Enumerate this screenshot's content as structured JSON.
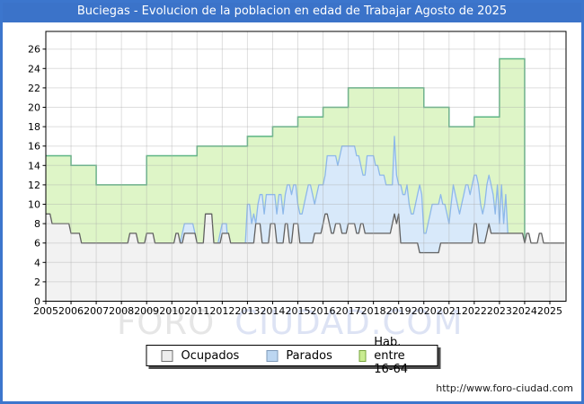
{
  "header": {
    "title": "Buciegas - Evolucion de la poblacion en edad de Trabajar Agosto de 2025"
  },
  "watermark": {
    "part1": "FORO",
    "part2": "CIUDAD.COM"
  },
  "footer": {
    "url": "http://www.foro-ciudad.com"
  },
  "legend": {
    "items": [
      {
        "label": "Ocupados",
        "fill": "#ededed",
        "border": "#6e6e6e"
      },
      {
        "label": "Parados",
        "fill": "#bcd6f1",
        "border": "#7e99b8"
      },
      {
        "label": "Hab. entre 16-64",
        "fill": "#c9ec91",
        "border": "#77a53d"
      }
    ]
  },
  "colors": {
    "frame_blue": "#3c76cd",
    "titlebar_blue": "#3b73c9",
    "gridline": "#a8a8a8",
    "plot_border": "#000000",
    "hab_fill": "#def5c7",
    "hab_stroke": "#5cb584",
    "parados_fill": "#d8e9fa",
    "parados_stroke": "#8db8ea",
    "ocupados_fill": "#f2f2f2",
    "ocupados_stroke": "#606060"
  },
  "chart_data": {
    "type": "area",
    "title": "Buciegas - Evolucion de la poblacion en edad de Trabajar Agosto de 2025",
    "xlabel": "",
    "ylabel": "",
    "x_axis": {
      "ticks": [
        2005,
        2006,
        2007,
        2008,
        2009,
        2010,
        2011,
        2012,
        2013,
        2014,
        2015,
        2016,
        2017,
        2018,
        2019,
        2020,
        2021,
        2022,
        2023,
        2024,
        2025
      ],
      "range": [
        2005,
        2025.67
      ]
    },
    "y_axis": {
      "ticks": [
        0,
        2,
        4,
        6,
        8,
        10,
        12,
        14,
        16,
        18,
        20,
        22,
        24,
        26
      ],
      "range": [
        0,
        27.8
      ]
    },
    "grid": true,
    "legend_position": "bottom",
    "series": [
      {
        "name": "Hab. entre 16-64",
        "granularity": "yearly",
        "years": [
          2005,
          2006,
          2007,
          2008,
          2009,
          2010,
          2011,
          2012,
          2013,
          2014,
          2015,
          2016,
          2017,
          2018,
          2019,
          2020,
          2021,
          2022,
          2023
        ],
        "values": [
          15,
          14,
          12,
          12,
          15,
          15,
          16,
          16,
          17,
          18,
          19,
          20,
          22,
          22,
          22,
          20,
          18,
          19,
          25
        ]
      },
      {
        "name": "Parados",
        "granularity": "monthly",
        "start_year": 2005,
        "values": [
          2,
          2,
          2,
          3,
          3,
          3,
          3,
          3,
          2,
          2,
          2,
          2,
          3,
          3,
          3,
          3,
          3,
          3,
          3,
          3,
          3,
          3,
          3,
          3,
          2,
          2,
          2,
          3,
          3,
          3,
          4,
          4,
          4,
          4,
          4,
          4,
          4,
          4,
          4,
          5,
          5,
          5,
          5,
          5,
          5,
          5,
          5,
          5,
          5,
          5,
          5,
          5,
          5,
          5,
          5,
          5,
          5,
          5,
          5,
          5,
          5,
          5,
          5,
          6,
          6,
          7,
          8,
          8,
          8,
          8,
          8,
          7,
          6,
          5,
          5,
          5,
          5,
          5,
          5,
          5,
          5,
          5,
          6,
          7,
          8,
          8,
          8,
          5,
          5,
          5,
          5,
          5,
          5,
          5,
          5,
          6,
          10,
          10,
          8,
          9,
          8,
          10,
          11,
          11,
          9,
          11,
          11,
          11,
          11,
          11,
          9,
          11,
          11,
          9,
          11,
          12,
          12,
          11,
          12,
          12,
          10,
          9,
          9,
          10,
          11,
          12,
          12,
          11,
          10,
          11,
          12,
          12,
          12,
          13,
          15,
          15,
          15,
          15,
          15,
          14,
          15,
          16,
          16,
          16,
          16,
          16,
          16,
          16,
          15,
          15,
          14,
          13,
          13,
          15,
          15,
          15,
          15,
          14,
          14,
          13,
          13,
          13,
          12,
          12,
          12,
          12,
          17,
          13,
          12,
          12,
          11,
          11,
          12,
          10,
          9,
          9,
          10,
          11,
          12,
          11,
          7,
          7,
          8,
          9,
          10,
          10,
          10,
          10,
          11,
          10,
          10,
          9,
          8,
          10,
          12,
          11,
          10,
          9,
          10,
          11,
          12,
          12,
          11,
          12,
          13,
          13,
          12,
          10,
          9,
          10,
          12,
          13,
          12,
          11,
          9,
          12,
          8,
          12,
          8,
          11,
          7,
          6,
          6,
          6,
          6,
          6,
          6,
          6,
          5,
          5,
          5,
          5,
          5,
          5,
          5,
          5,
          5,
          5,
          5,
          5,
          5,
          5,
          5,
          5,
          5,
          5,
          5,
          5
        ]
      },
      {
        "name": "Ocupados",
        "granularity": "monthly",
        "start_year": 2005,
        "values": [
          9,
          9,
          9,
          8,
          8,
          8,
          8,
          8,
          8,
          8,
          8,
          8,
          7,
          7,
          7,
          7,
          7,
          6,
          6,
          6,
          6,
          6,
          6,
          6,
          6,
          6,
          6,
          6,
          6,
          6,
          6,
          6,
          6,
          6,
          6,
          6,
          6,
          6,
          6,
          6,
          7,
          7,
          7,
          7,
          6,
          6,
          6,
          6,
          7,
          7,
          7,
          7,
          6,
          6,
          6,
          6,
          6,
          6,
          6,
          6,
          6,
          6,
          7,
          7,
          6,
          6,
          7,
          7,
          7,
          7,
          7,
          7,
          6,
          6,
          6,
          6,
          9,
          9,
          9,
          9,
          6,
          6,
          6,
          6,
          7,
          7,
          7,
          7,
          6,
          6,
          6,
          6,
          6,
          6,
          6,
          6,
          6,
          6,
          6,
          6,
          8,
          8,
          8,
          6,
          6,
          6,
          6,
          8,
          8,
          8,
          6,
          6,
          6,
          6,
          8,
          8,
          6,
          6,
          8,
          8,
          8,
          6,
          6,
          6,
          6,
          6,
          6,
          6,
          7,
          7,
          7,
          7,
          8,
          9,
          9,
          8,
          7,
          7,
          8,
          8,
          8,
          7,
          7,
          7,
          8,
          8,
          8,
          8,
          7,
          7,
          8,
          8,
          7,
          7,
          7,
          7,
          7,
          7,
          7,
          7,
          7,
          7,
          7,
          7,
          7,
          8,
          9,
          8,
          9,
          6,
          6,
          6,
          6,
          6,
          6,
          6,
          6,
          6,
          5,
          5,
          5,
          5,
          5,
          5,
          5,
          5,
          5,
          5,
          6,
          6,
          6,
          6,
          6,
          6,
          6,
          6,
          6,
          6,
          6,
          6,
          6,
          6,
          6,
          6,
          8,
          8,
          6,
          6,
          6,
          6,
          7,
          8,
          7,
          7,
          7,
          7,
          7,
          7,
          7,
          7,
          7,
          7,
          7,
          7,
          7,
          7,
          7,
          7,
          6,
          7,
          7,
          6,
          6,
          6,
          6,
          7,
          7,
          6,
          6,
          6,
          6,
          6,
          6,
          6,
          6,
          6,
          6,
          6
        ]
      }
    ]
  }
}
